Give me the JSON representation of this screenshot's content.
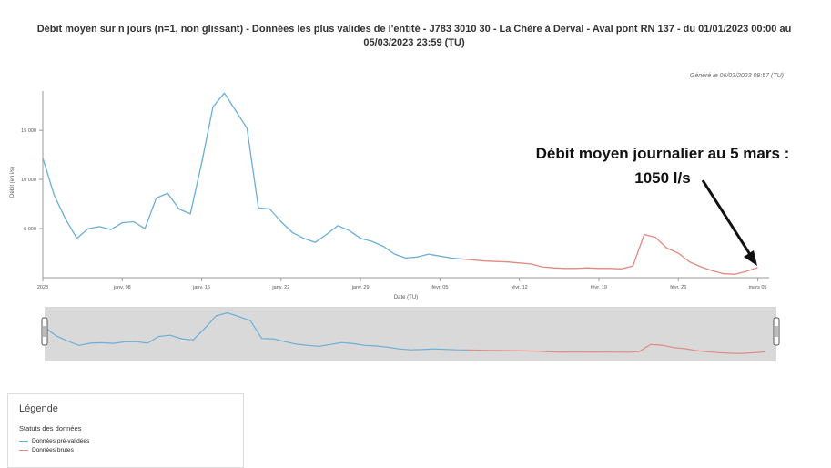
{
  "title_line1": "Débit moyen sur n jours (n=1, non glissant) - Données les plus valides de l'entité - J783 3010 30 - La Chère à Derval - Aval pont RN 137 - du 01/01/2023 00:00 au",
  "title_line2": "05/03/2023 23:59 (TU)",
  "generated": "Généré le 06/03/2023 09:57 (TU)",
  "annotation_line1": "Débit moyen journalier au 5 mars :",
  "annotation_line2": "1050 l/s",
  "legend": {
    "title": "Légende",
    "subtitle": "Statuts des données",
    "items": [
      {
        "label": "Données pré-validées",
        "color": "#6baed6"
      },
      {
        "label": "Données brutes",
        "color": "#e08a80"
      }
    ]
  },
  "colors": {
    "prevalidated": "#6baed6",
    "raw": "#e08a80",
    "navigator_bg": "#d9d9d9",
    "arrow": "#111111"
  },
  "chart_data": {
    "type": "line",
    "xlabel": "Date (TU)",
    "ylabel": "Débit (en l/s)",
    "ylim": [
      0,
      19000
    ],
    "y_ticks": [
      5000,
      10000,
      15000
    ],
    "y_tick_labels": [
      "5 000",
      "10 000",
      "15 000"
    ],
    "x_range": [
      "2023-01-01",
      "2023-03-06"
    ],
    "x_ticks": [
      "2023-01-01",
      "2023-01-08",
      "2023-01-15",
      "2023-01-22",
      "2023-01-29",
      "2023-02-05",
      "2023-02-12",
      "2023-02-19",
      "2023-02-26",
      "2023-03-05"
    ],
    "x_tick_labels": [
      "2023",
      "janv. 08",
      "janv. 15",
      "janv. 22",
      "janv. 29",
      "févr. 05",
      "févr. 12",
      "févr. 19",
      "févr. 26",
      "mars 05"
    ],
    "grid": false,
    "legend_position": "bottom-left",
    "series": [
      {
        "name": "Données pré-validées",
        "x": [
          "2023-01-01",
          "2023-01-02",
          "2023-01-03",
          "2023-01-04",
          "2023-01-05",
          "2023-01-06",
          "2023-01-07",
          "2023-01-08",
          "2023-01-09",
          "2023-01-10",
          "2023-01-11",
          "2023-01-12",
          "2023-01-13",
          "2023-01-14",
          "2023-01-15",
          "2023-01-16",
          "2023-01-17",
          "2023-01-18",
          "2023-01-19",
          "2023-01-20",
          "2023-01-21",
          "2023-01-22",
          "2023-01-23",
          "2023-01-24",
          "2023-01-25",
          "2023-01-26",
          "2023-01-27",
          "2023-01-28",
          "2023-01-29",
          "2023-01-30",
          "2023-01-31",
          "2023-02-01",
          "2023-02-02",
          "2023-02-03",
          "2023-02-04",
          "2023-02-05",
          "2023-02-06",
          "2023-02-07"
        ],
        "values": [
          12200,
          8400,
          6000,
          4000,
          5000,
          5200,
          4900,
          5600,
          5700,
          5000,
          8100,
          8600,
          7000,
          6500,
          11700,
          17400,
          18800,
          17000,
          15200,
          7100,
          7000,
          5700,
          4600,
          4000,
          3600,
          4400,
          5300,
          4800,
          4000,
          3700,
          3200,
          2400,
          2000,
          2100,
          2400,
          2200,
          2000,
          1900
        ]
      },
      {
        "name": "Données brutes",
        "x": [
          "2023-02-07",
          "2023-02-08",
          "2023-02-09",
          "2023-02-10",
          "2023-02-11",
          "2023-02-12",
          "2023-02-13",
          "2023-02-14",
          "2023-02-15",
          "2023-02-16",
          "2023-02-17",
          "2023-02-18",
          "2023-02-19",
          "2023-02-20",
          "2023-02-21",
          "2023-02-22",
          "2023-02-23",
          "2023-02-24",
          "2023-02-25",
          "2023-02-26",
          "2023-02-27",
          "2023-02-28",
          "2023-03-01",
          "2023-03-02",
          "2023-03-03",
          "2023-03-04",
          "2023-03-05"
        ],
        "values": [
          1900,
          1800,
          1700,
          1650,
          1600,
          1500,
          1400,
          1100,
          1000,
          950,
          950,
          1000,
          950,
          950,
          900,
          1200,
          4400,
          4100,
          3000,
          2500,
          1600,
          1100,
          700,
          400,
          350,
          650,
          1050
        ]
      }
    ]
  }
}
